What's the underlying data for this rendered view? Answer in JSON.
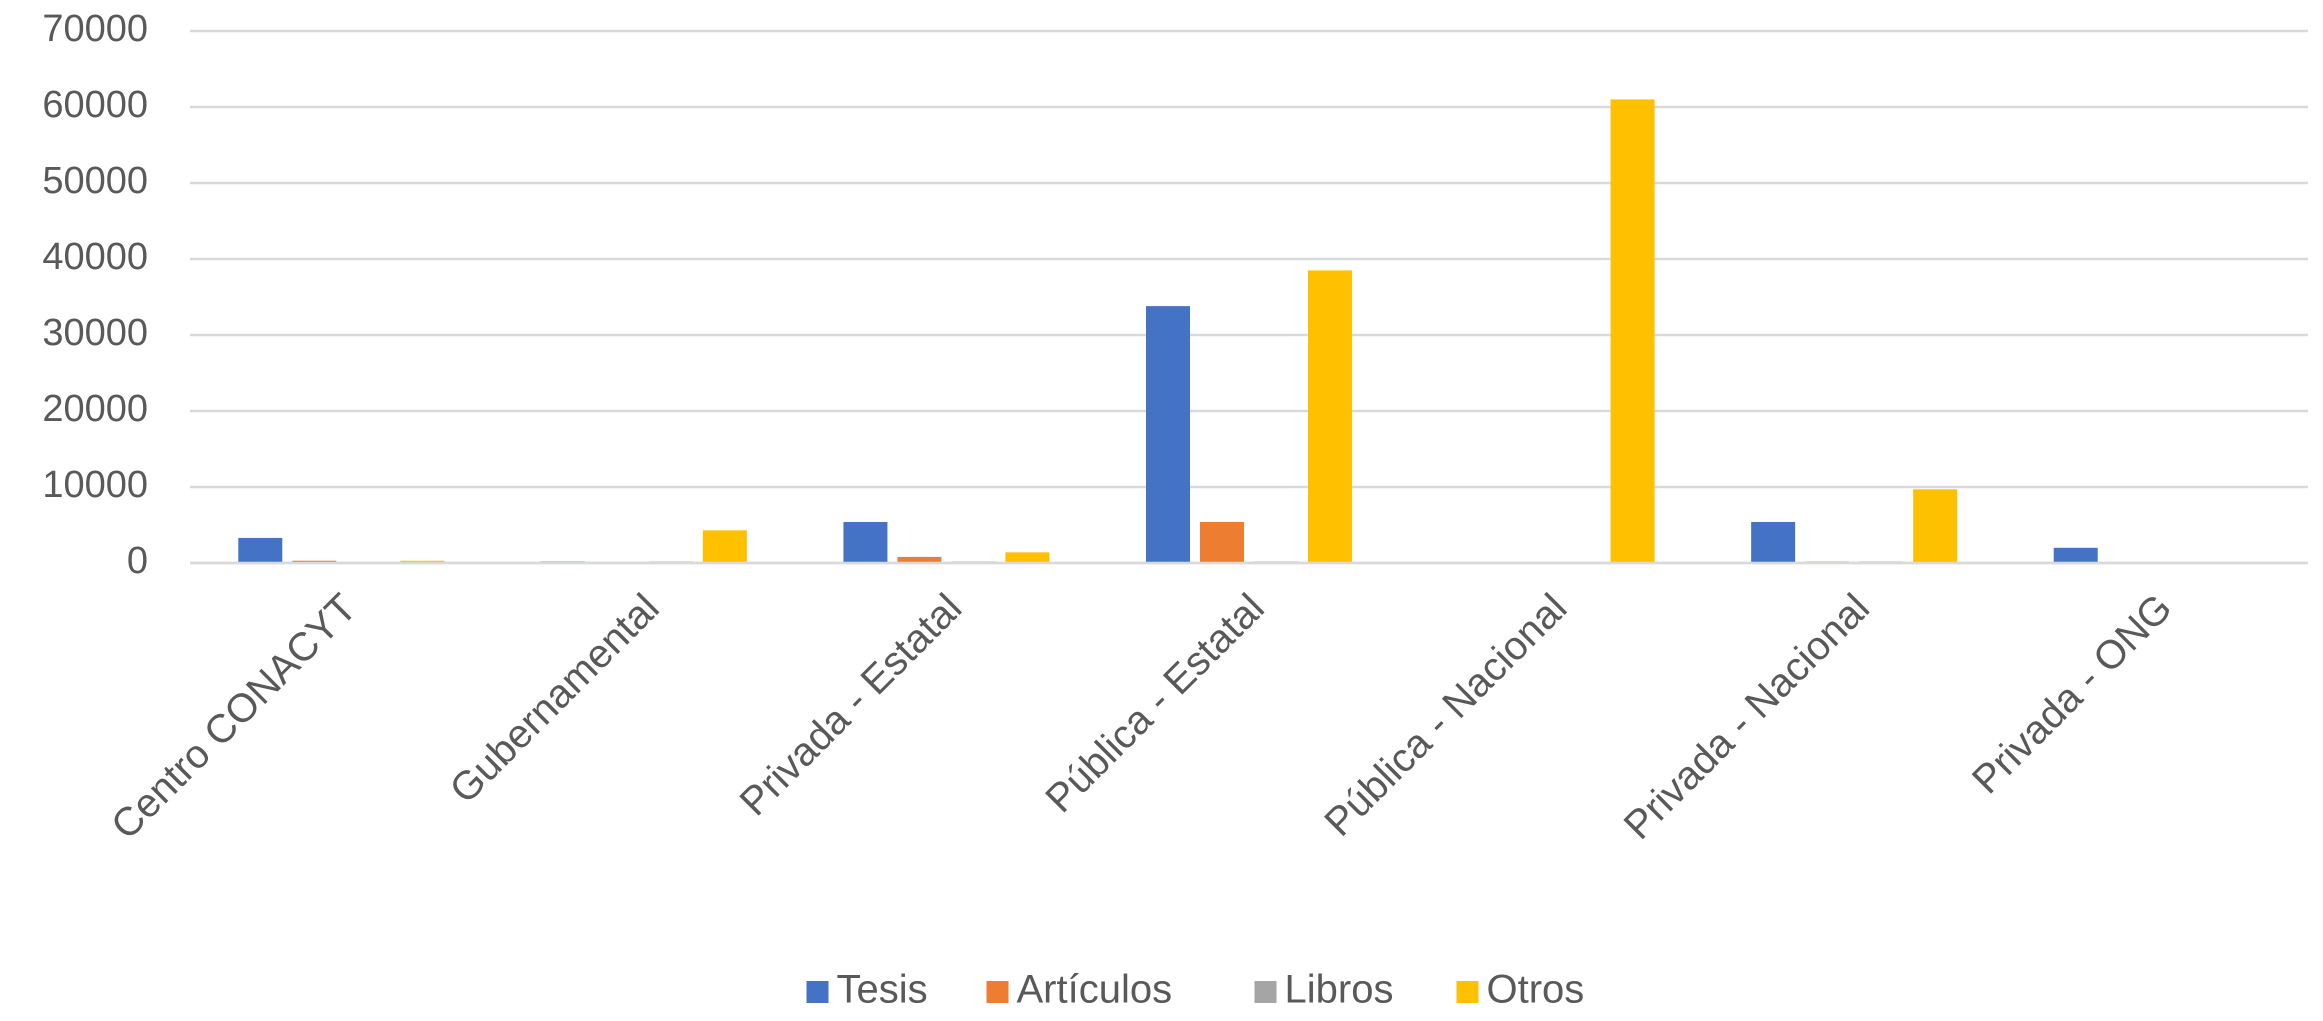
{
  "chart_data": {
    "type": "bar",
    "categories": [
      "Centro CONACYT",
      "Gubernamental",
      "Privada - Estatal",
      "Pública - Estatal",
      "Pública - Nacional",
      "Privada - Nacional",
      "Privada - ONG"
    ],
    "series": [
      {
        "name": "Tesis",
        "color": "#4472c4",
        "values": [
          3300,
          200,
          5400,
          33800,
          0,
          5400,
          2000
        ]
      },
      {
        "name": "Artículos",
        "color": "#ed7d31",
        "values": [
          300,
          0,
          800,
          5400,
          0,
          200,
          0
        ]
      },
      {
        "name": "Libros",
        "color": "#a5a5a5",
        "values": [
          0,
          200,
          200,
          200,
          0,
          200,
          0
        ]
      },
      {
        "name": "Otros",
        "color": "#ffc000",
        "values": [
          300,
          4300,
          1400,
          38500,
          61000,
          9700,
          0
        ]
      }
    ],
    "ylim": [
      0,
      70000
    ],
    "yticks": [
      0,
      10000,
      20000,
      30000,
      40000,
      50000,
      60000,
      70000
    ],
    "grid": true,
    "legend": "bottom"
  }
}
